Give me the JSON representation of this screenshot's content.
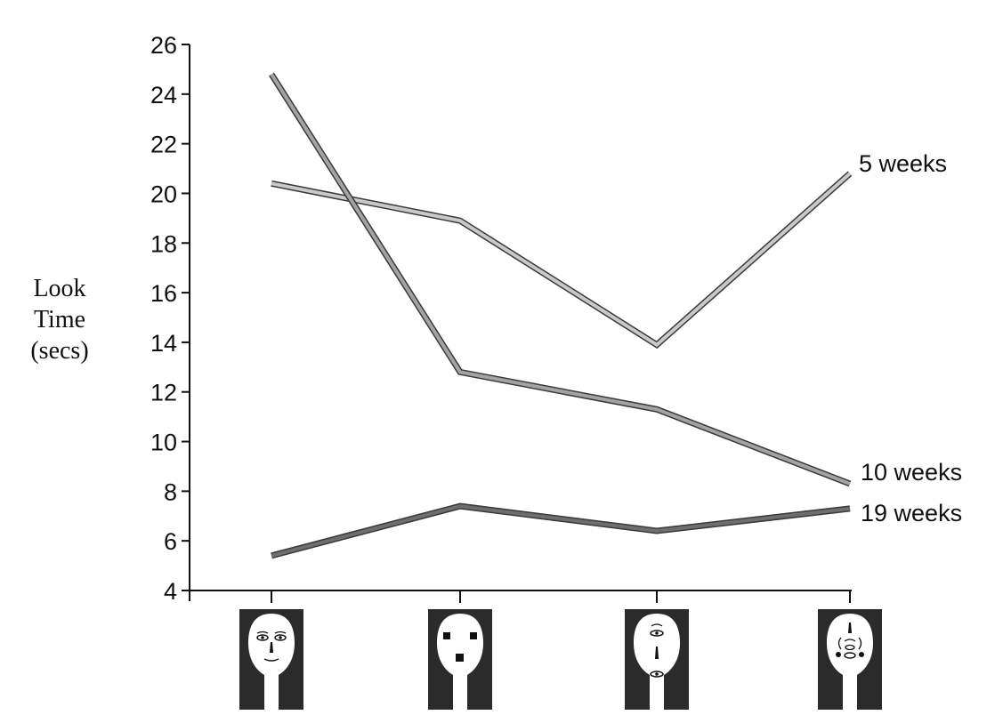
{
  "chart_data": {
    "type": "line",
    "ylabel_lines": [
      "Look",
      "Time",
      "(secs)"
    ],
    "ylim": [
      4,
      26
    ],
    "yticks": [
      4,
      6,
      8,
      10,
      12,
      14,
      16,
      18,
      20,
      22,
      24,
      26
    ],
    "grid": false,
    "categories": [
      "face-natural-features",
      "face-three-squares",
      "face-vertical-features",
      "face-scrambled-features"
    ],
    "series": [
      {
        "name": "5 weeks",
        "values": [
          20.4,
          18.9,
          13.9,
          20.8
        ],
        "color": "#c9c9c9"
      },
      {
        "name": "10 weeks",
        "values": [
          24.8,
          12.8,
          11.3,
          8.3
        ],
        "color": "#a3a3a3"
      },
      {
        "name": "19 weeks",
        "values": [
          5.4,
          7.4,
          6.4,
          7.3
        ],
        "color": "#6e6e6e"
      }
    ]
  }
}
